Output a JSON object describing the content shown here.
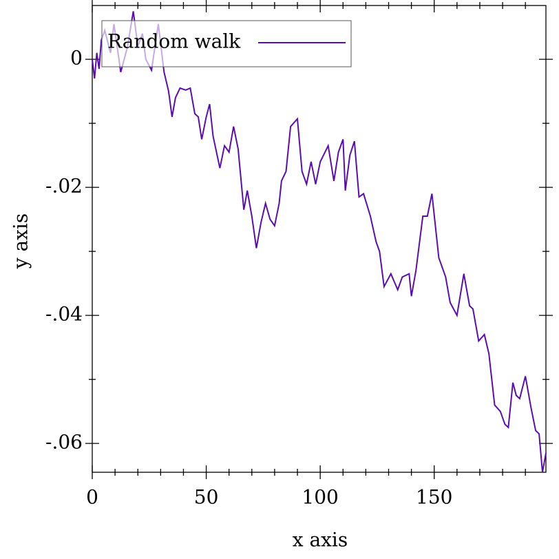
{
  "chart_data": {
    "type": "line",
    "x_label": "x axis",
    "y_label": "y axis",
    "x": [
      0,
      1,
      2,
      3,
      4,
      5.5,
      8,
      9.5,
      12.5,
      15.5,
      18,
      20,
      22,
      23.5,
      26,
      29,
      31.5,
      33.5,
      35,
      36.5,
      38.5,
      41,
      43,
      45,
      46.5,
      48,
      50,
      51.5,
      53,
      56,
      58,
      60,
      62,
      64,
      66.5,
      68,
      70,
      72,
      74,
      76,
      78,
      80,
      82,
      83,
      85,
      87,
      90,
      92,
      94,
      96,
      98,
      100,
      103.5,
      106,
      108,
      110,
      111,
      113,
      115,
      117,
      119,
      122,
      124.5,
      126,
      128,
      131,
      134,
      136,
      139,
      140,
      142,
      145,
      147,
      149,
      152,
      155,
      157,
      160,
      163,
      165.5,
      167,
      169.5,
      172,
      174,
      176.5,
      179,
      181,
      182.5,
      184.5,
      186,
      187.5,
      190,
      192.5,
      194.5,
      196,
      197.5,
      199
    ],
    "series": [
      {
        "name": "Random walk",
        "color": "#5a0cb0",
        "values": [
          0,
          -0.003,
          0.001,
          -0.0015,
          0.003,
          0.0045,
          0.001,
          0.0055,
          -0.002,
          0.002,
          0.0075,
          0.002,
          0.004,
          0,
          -0.0017,
          0.0055,
          -0.002,
          -0.005,
          -0.009,
          -0.006,
          -0.0045,
          -0.0048,
          -0.0045,
          -0.0085,
          -0.009,
          -0.0125,
          -0.009,
          -0.007,
          -0.012,
          -0.017,
          -0.0135,
          -0.0145,
          -0.0105,
          -0.014,
          -0.0235,
          -0.0205,
          -0.0245,
          -0.0295,
          -0.0255,
          -0.0225,
          -0.025,
          -0.026,
          -0.0225,
          -0.019,
          -0.0175,
          -0.0105,
          -0.0093,
          -0.0175,
          -0.0195,
          -0.016,
          -0.0195,
          -0.016,
          -0.0135,
          -0.019,
          -0.0145,
          -0.0125,
          -0.0205,
          -0.015,
          -0.0128,
          -0.0215,
          -0.021,
          -0.0245,
          -0.0285,
          -0.03,
          -0.0355,
          -0.0335,
          -0.036,
          -0.034,
          -0.0335,
          -0.037,
          -0.033,
          -0.0245,
          -0.0245,
          -0.021,
          -0.031,
          -0.034,
          -0.038,
          -0.04,
          -0.0335,
          -0.0385,
          -0.039,
          -0.044,
          -0.043,
          -0.046,
          -0.054,
          -0.055,
          -0.057,
          -0.0575,
          -0.0505,
          -0.0525,
          -0.053,
          -0.0495,
          -0.0545,
          -0.058,
          -0.0585,
          -0.0645,
          -0.0615
        ]
      }
    ],
    "xlim": [
      0,
      199
    ],
    "ylim": [
      -0.0645,
      0.0084
    ],
    "xticks": [
      0,
      50,
      100,
      150
    ],
    "x_minor_ticks": [
      10,
      20,
      30,
      40,
      60,
      70,
      80,
      90,
      110,
      120,
      130,
      140,
      160,
      170,
      180,
      190
    ],
    "yticks": [
      0,
      {
        "value": -0.02,
        "label": "-.02"
      },
      {
        "value": -0.04,
        "label": "-.04"
      },
      {
        "value": -0.06,
        "label": "-.06"
      }
    ],
    "y_minor_ticks": [
      -0.01,
      -0.03,
      -0.05
    ],
    "legend": "top-left",
    "grid": false
  }
}
